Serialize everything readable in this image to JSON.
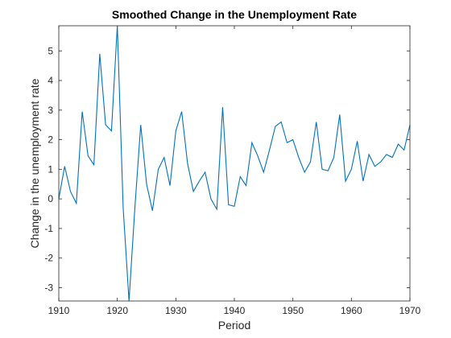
{
  "chart_data": {
    "type": "line",
    "title": "Smoothed Change in the Unemployment Rate",
    "xlabel": "Period",
    "ylabel": "Change in the unemployment rate",
    "xlim": [
      1910,
      1970
    ],
    "ylim": [
      -3.45,
      5.85
    ],
    "xticks": [
      1910,
      1920,
      1930,
      1940,
      1950,
      1960,
      1970
    ],
    "yticks": [
      -3,
      -2,
      -1,
      0,
      1,
      2,
      3,
      4,
      5
    ],
    "grid": false,
    "series": [
      {
        "color": "#0072BD",
        "x": [
          1910,
          1911,
          1912,
          1913,
          1914,
          1915,
          1916,
          1917,
          1918,
          1919,
          1920,
          1921,
          1922,
          1923,
          1924,
          1925,
          1926,
          1927,
          1928,
          1929,
          1930,
          1931,
          1932,
          1933,
          1934,
          1935,
          1936,
          1937,
          1938,
          1939,
          1940,
          1941,
          1942,
          1943,
          1944,
          1945,
          1946,
          1947,
          1948,
          1949,
          1950,
          1951,
          1952,
          1953,
          1954,
          1955,
          1956,
          1957,
          1958,
          1959,
          1960,
          1961,
          1962,
          1963,
          1964,
          1965,
          1966,
          1967,
          1968,
          1969,
          1970
        ],
        "values": [
          0.0,
          1.1,
          0.25,
          -0.15,
          2.95,
          1.45,
          1.15,
          4.9,
          2.5,
          2.3,
          5.85,
          -0.3,
          -3.45,
          -0.3,
          2.5,
          0.5,
          -0.4,
          1.0,
          1.4,
          0.45,
          2.3,
          2.95,
          1.2,
          0.25,
          0.6,
          0.9,
          0.0,
          -0.35,
          3.1,
          -0.2,
          -0.25,
          0.75,
          0.45,
          1.9,
          1.45,
          0.9,
          1.65,
          2.45,
          2.6,
          1.9,
          2.0,
          1.4,
          0.9,
          1.25,
          2.6,
          1.0,
          0.95,
          1.4,
          2.85,
          0.6,
          1.0,
          1.95,
          0.6,
          1.5,
          1.1,
          1.25,
          1.5,
          1.4,
          1.85,
          1.65,
          2.5
        ]
      }
    ]
  }
}
